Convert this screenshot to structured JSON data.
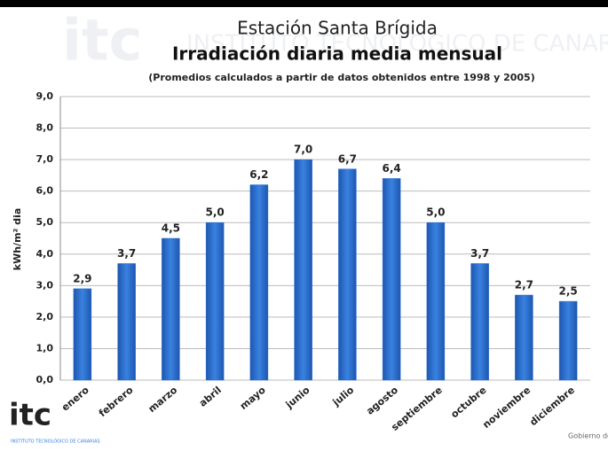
{
  "chart_data": {
    "type": "bar",
    "title": "Estación Santa Brígida",
    "subtitle": "Irradiación diaria media mensual",
    "note": "(Promedios calculados a partir de datos obtenidos entre 1998 y 2005)",
    "ylabel": "kWh/m² dia",
    "categories": [
      "enero",
      "febrero",
      "marzo",
      "abril",
      "mayo",
      "junio",
      "julio",
      "agosto",
      "septiembre",
      "octubre",
      "noviembre",
      "diciembre"
    ],
    "values": [
      2.9,
      3.7,
      4.5,
      5.0,
      6.2,
      7.0,
      6.7,
      6.4,
      5.0,
      3.7,
      2.7,
      2.5
    ],
    "value_labels": [
      "2,9",
      "3,7",
      "4,5",
      "5,0",
      "6,2",
      "7,0",
      "6,7",
      "6,4",
      "5,0",
      "3,7",
      "2,7",
      "2,5"
    ],
    "color": "#2a6fd0",
    "ylim": [
      0,
      9
    ],
    "yticks": [
      {
        "value": 0,
        "label": "0,0"
      },
      {
        "value": 1,
        "label": "1,0"
      },
      {
        "value": 2,
        "label": "2,0"
      },
      {
        "value": 3,
        "label": "3,0"
      },
      {
        "value": 4,
        "label": "4,0"
      },
      {
        "value": 5,
        "label": "5,0"
      },
      {
        "value": 6,
        "label": "6,0"
      },
      {
        "value": 7,
        "label": "7,0"
      },
      {
        "value": 8,
        "label": "8,0"
      },
      {
        "value": 9,
        "label": "9,0"
      }
    ],
    "grid": true
  },
  "branding": {
    "logo": "itc",
    "institute": "INSTITUTO TECNOLÓGICO DE CANARIAS",
    "government": "Gobierno de Canarias"
  }
}
